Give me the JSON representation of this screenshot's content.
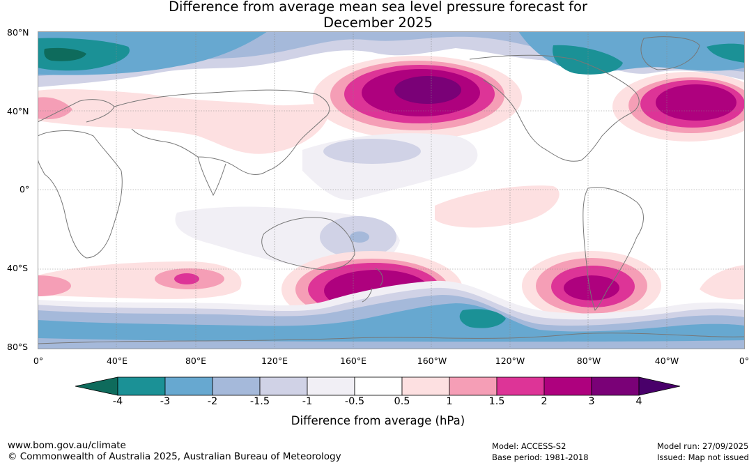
{
  "title_line1": "Difference from average mean sea level pressure forecast for",
  "title_line2": "December 2025",
  "lat_labels": [
    "80°N",
    "40°N",
    "0°",
    "40°S",
    "80°S"
  ],
  "lon_labels": [
    "0°",
    "40°E",
    "80°E",
    "120°E",
    "160°E",
    "160°W",
    "120°W",
    "80°W",
    "40°W",
    "0°"
  ],
  "colorbar": {
    "title": "Difference from average (hPa)",
    "tick_labels": [
      "-4",
      "-3",
      "-2",
      "-1.5",
      "-1",
      "-0.5",
      "0.5",
      "1",
      "1.5",
      "2",
      "3",
      "4"
    ],
    "colors": [
      "#0e6b5c",
      "#1b9196",
      "#67a8d0",
      "#a5b9da",
      "#d0d2e6",
      "#f1eff5",
      "#ffffff",
      "#fde0e1",
      "#f59eb6",
      "#dd3497",
      "#ae017e",
      "#7a0177",
      "#49006a"
    ]
  },
  "footer": {
    "website": "www.bom.gov.au/climate",
    "copyright": "© Commonwealth of Australia 2025, Australian Bureau of Meteorology",
    "model": "Model: ACCESS-S2",
    "base_period": "Base period: 1981-2018",
    "model_run": "Model run: 27/09/2025",
    "issued": "Issued: Map not issued"
  },
  "anomaly_features": [
    {
      "name": "north-pacific-high",
      "lon": 180,
      "lat": 45,
      "value": 4
    },
    {
      "name": "north-atlantic-high",
      "lon": -25,
      "lat": 42,
      "value": 3
    },
    {
      "name": "new-zealand-high",
      "lon": 170,
      "lat": -47,
      "value": 3
    },
    {
      "name": "south-america-high",
      "lon": -70,
      "lat": -47,
      "value": 3
    },
    {
      "name": "southern-indian-high",
      "lon": 70,
      "lat": -45,
      "value": 2
    },
    {
      "name": "arctic-low-siberia",
      "lon": 20,
      "lat": 72,
      "value": -4
    },
    {
      "name": "arctic-low-canada",
      "lon": -80,
      "lat": 70,
      "value": -3
    },
    {
      "name": "amundsen-sea-low",
      "lon": -130,
      "lat": -65,
      "value": -3
    },
    {
      "name": "antarctic-low-belt",
      "lon": 0,
      "lat": -68,
      "value": -2
    }
  ]
}
